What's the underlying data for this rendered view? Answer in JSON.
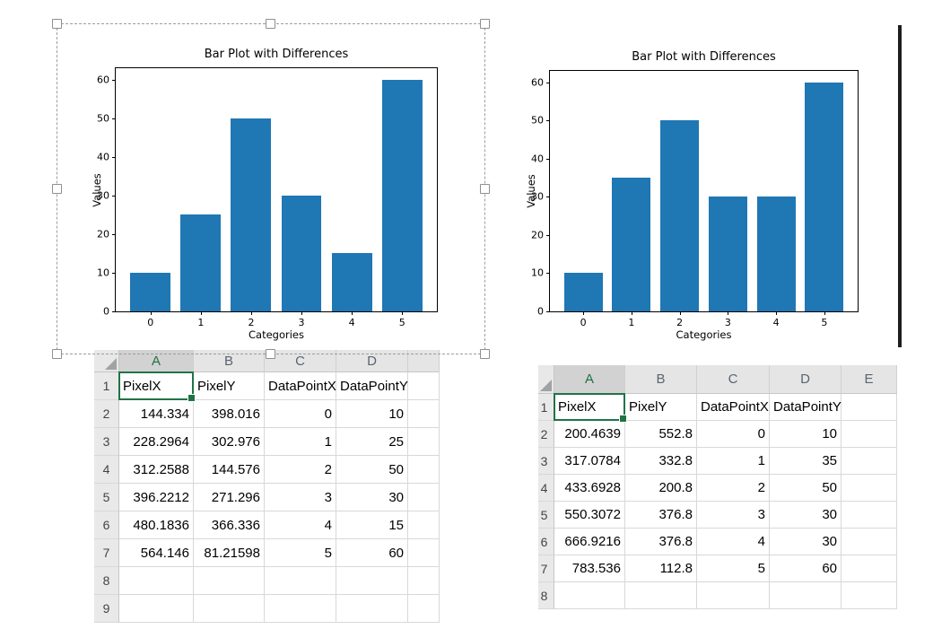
{
  "chart_data": [
    {
      "type": "bar",
      "title": "Bar Plot with Differences",
      "xlabel": "Categories",
      "ylabel": "Values",
      "categories": [
        "0",
        "1",
        "2",
        "3",
        "4",
        "5"
      ],
      "values": [
        10,
        25,
        50,
        30,
        15,
        60
      ],
      "yticks": [
        0,
        10,
        20,
        30,
        40,
        50,
        60
      ],
      "ylim": [
        0,
        63
      ],
      "grid": false,
      "bar_color": "#1f77b4"
    },
    {
      "type": "bar",
      "title": "Bar Plot with Differences",
      "xlabel": "Categories",
      "ylabel": "Values",
      "categories": [
        "0",
        "1",
        "2",
        "3",
        "4",
        "5"
      ],
      "values": [
        10,
        35,
        50,
        30,
        30,
        60
      ],
      "yticks": [
        0,
        10,
        20,
        30,
        40,
        50,
        60
      ],
      "ylim": [
        0,
        63
      ],
      "grid": false,
      "bar_color": "#1f77b4"
    }
  ],
  "sheets": {
    "left": {
      "col_headers": [
        "A",
        "B",
        "C",
        "D",
        ""
      ],
      "row_numbers": [
        "1",
        "2",
        "3",
        "4",
        "5",
        "6",
        "7",
        "8",
        "9"
      ],
      "selected_cell": {
        "row": 0,
        "col": 0
      },
      "rows": [
        [
          "PixelX",
          "PixelY",
          "DataPointX",
          "DataPointY",
          ""
        ],
        [
          "144.334",
          "398.016",
          "0",
          "10",
          ""
        ],
        [
          "228.2964",
          "302.976",
          "1",
          "25",
          ""
        ],
        [
          "312.2588",
          "144.576",
          "2",
          "50",
          ""
        ],
        [
          "396.2212",
          "271.296",
          "3",
          "30",
          ""
        ],
        [
          "480.1836",
          "366.336",
          "4",
          "15",
          ""
        ],
        [
          "564.146",
          "81.21598",
          "5",
          "60",
          ""
        ],
        [
          "",
          "",
          "",
          "",
          ""
        ],
        [
          "",
          "",
          "",
          "",
          ""
        ]
      ]
    },
    "right": {
      "col_headers": [
        "A",
        "B",
        "C",
        "D",
        "E"
      ],
      "row_numbers": [
        "1",
        "2",
        "3",
        "4",
        "5",
        "6",
        "7",
        "8"
      ],
      "selected_cell": {
        "row": 0,
        "col": 0
      },
      "rows": [
        [
          "PixelX",
          "PixelY",
          "DataPointX",
          "DataPointY",
          ""
        ],
        [
          "200.4639",
          "552.8",
          "0",
          "10",
          ""
        ],
        [
          "317.0784",
          "332.8",
          "1",
          "35",
          ""
        ],
        [
          "433.6928",
          "200.8",
          "2",
          "50",
          ""
        ],
        [
          "550.3072",
          "376.8",
          "3",
          "30",
          ""
        ],
        [
          "666.9216",
          "376.8",
          "4",
          "30",
          ""
        ],
        [
          "783.536",
          "112.8",
          "5",
          "60",
          ""
        ],
        [
          "",
          "",
          "",
          "",
          ""
        ]
      ]
    }
  },
  "colors": {
    "bar": "#1f77b4",
    "excel_selection_green": "#217346"
  }
}
